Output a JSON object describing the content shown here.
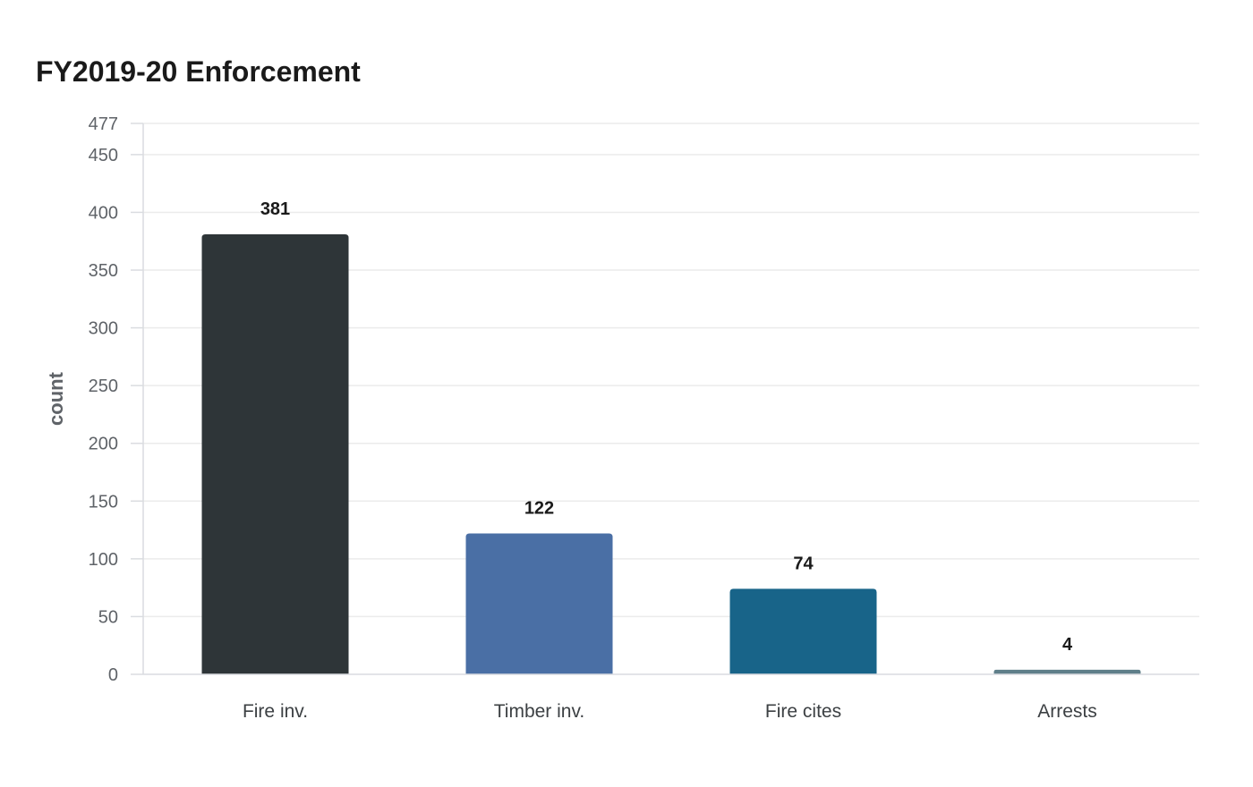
{
  "chart_data": {
    "type": "bar",
    "title": "FY2019-20 Enforcement",
    "xlabel": "",
    "ylabel": "count",
    "categories": [
      "Fire inv.",
      "Timber inv.",
      "Fire cites",
      "Arrests"
    ],
    "values": [
      381,
      122,
      74,
      4
    ],
    "bar_colors": [
      "#2e3538",
      "#4a6fa5",
      "#186489",
      "#5f7f8a"
    ],
    "ylim": [
      0,
      477
    ],
    "yticks": [
      0,
      50,
      100,
      150,
      200,
      250,
      300,
      350,
      400,
      450,
      477
    ],
    "grid": true,
    "legend": "none"
  }
}
